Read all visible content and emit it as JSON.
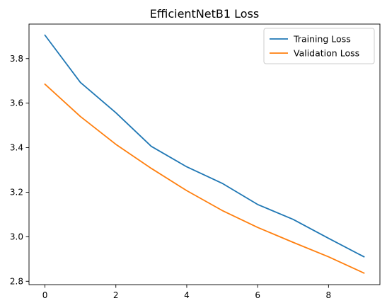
{
  "chart_data": {
    "type": "line",
    "title": "EfficientNetB1 Loss",
    "xlabel": "",
    "ylabel": "",
    "x": [
      0,
      1,
      2,
      3,
      4,
      5,
      6,
      7,
      8,
      9
    ],
    "xticks": [
      0,
      2,
      4,
      6,
      8
    ],
    "yticks": [
      2.8,
      3.0,
      3.2,
      3.4,
      3.6,
      3.8
    ],
    "xlim": [
      -0.45,
      9.45
    ],
    "ylim": [
      2.785,
      3.955
    ],
    "grid": false,
    "legend_position": "top-right",
    "series": [
      {
        "name": "Training Loss",
        "color": "#1f77b4",
        "values": [
          3.905,
          3.693,
          3.557,
          3.406,
          3.314,
          3.24,
          3.145,
          3.078,
          2.993,
          2.91
        ]
      },
      {
        "name": "Validation Loss",
        "color": "#ff7f0e",
        "values": [
          3.685,
          3.54,
          3.415,
          3.307,
          3.207,
          3.118,
          3.042,
          2.975,
          2.91,
          2.837
        ]
      }
    ]
  }
}
